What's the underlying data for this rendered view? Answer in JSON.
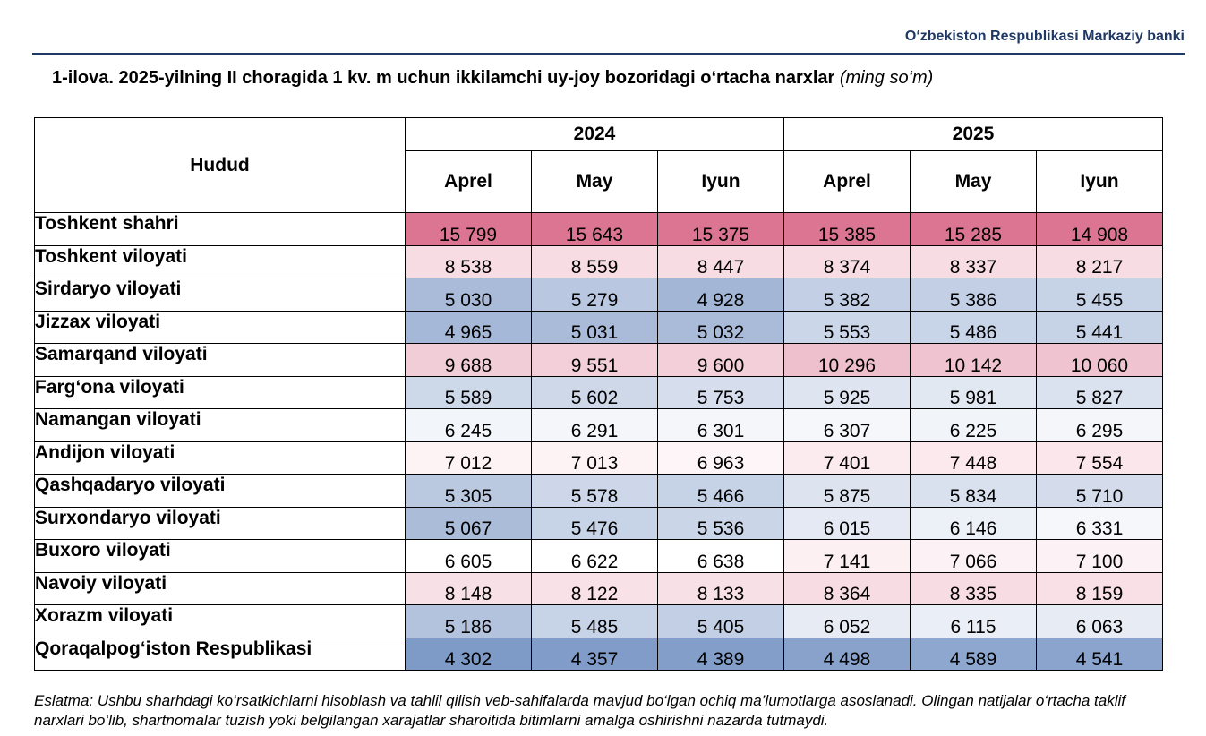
{
  "header": {
    "organization": "O‘zbekiston Respublikasi Markaziy banki"
  },
  "title": {
    "main": "1-ilova. 2025-yilning II choragida 1 kv. m uchun ikkilamchi uy-joy bozoridagi o‘rtacha narxlar",
    "unit": "(ming so‘m)"
  },
  "table": {
    "region_header": "Hudud",
    "years": [
      "2024",
      "2025"
    ],
    "months": [
      "Aprel",
      "May",
      "Iyun",
      "Aprel",
      "May",
      "Iyun"
    ],
    "rows": [
      {
        "region": "Toshkent shahri",
        "values": [
          "15 799",
          "15 643",
          "15 375",
          "15 385",
          "15 285",
          "14 908"
        ],
        "colors": [
          "#dc7591",
          "#dc7591",
          "#dc7591",
          "#dc7591",
          "#dc7591",
          "#dc7591"
        ]
      },
      {
        "region": "Toshkent viloyati",
        "values": [
          "8 538",
          "8 559",
          "8 447",
          "8 374",
          "8 337",
          "8 217"
        ],
        "colors": [
          "#f7dce3",
          "#f7dce3",
          "#f7dce3",
          "#f7dce3",
          "#f7dce3",
          "#f7dce3"
        ]
      },
      {
        "region": "Sirdaryo viloyati",
        "values": [
          "5 030",
          "5 279",
          "4 928",
          "5 382",
          "5 386",
          "5 455"
        ],
        "colors": [
          "#a9bbd9",
          "#b9c8e0",
          "#a3b6d6",
          "#c2cfe4",
          "#c2cfe4",
          "#c6d2e6"
        ]
      },
      {
        "region": "Jizzax viloyati",
        "values": [
          "4 965",
          "5 031",
          "5 032",
          "5 553",
          "5 486",
          "5 441"
        ],
        "colors": [
          "#a6b8d7",
          "#a9bbd9",
          "#a9bbd9",
          "#cbd6e8",
          "#c8d4e7",
          "#c6d2e6"
        ]
      },
      {
        "region": "Samarqand viloyati",
        "values": [
          "9 688",
          "9 551",
          "9 600",
          "10 296",
          "10 142",
          "10 060"
        ],
        "colors": [
          "#f1cdd7",
          "#f2cfd9",
          "#f2cfd9",
          "#eec0cd",
          "#efc3cf",
          "#efc4d0"
        ]
      },
      {
        "region": "Farg‘ona viloyati",
        "values": [
          "5 589",
          "5 602",
          "5 753",
          "5 925",
          "5 981",
          "5 827"
        ],
        "colors": [
          "#cdd8e9",
          "#ced8e9",
          "#d6deed",
          "#dfe5f0",
          "#e2e8f2",
          "#dae2ef"
        ]
      },
      {
        "region": "Namangan viloyati",
        "values": [
          "6 245",
          "6 291",
          "6 301",
          "6 307",
          "6 225",
          "6 295"
        ],
        "colors": [
          "#f2f5fa",
          "#f4f6fa",
          "#f4f6fa",
          "#f5f7fb",
          "#f1f4f9",
          "#f4f6fa"
        ]
      },
      {
        "region": "Andijon viloyati",
        "values": [
          "7 012",
          "7 013",
          "6 963",
          "7 401",
          "7 448",
          "7 554"
        ],
        "colors": [
          "#fdf3f5",
          "#fdf3f5",
          "#fdf5f7",
          "#fbebef",
          "#fbe9ee",
          "#fae6eb"
        ]
      },
      {
        "region": "Qashqadaryo viloyati",
        "values": [
          "5 305",
          "5 578",
          "5 466",
          "5 875",
          "5 834",
          "5 710"
        ],
        "colors": [
          "#bac8e0",
          "#cdd7e9",
          "#c6d2e6",
          "#dde3ef",
          "#dae1ee",
          "#d4dcec"
        ]
      },
      {
        "region": "Surxondaryo viloyati",
        "values": [
          "5 067",
          "5 476",
          "5 536",
          "6 015",
          "6 146",
          "6 331"
        ],
        "colors": [
          "#abbcd9",
          "#c7d3e6",
          "#cad5e8",
          "#e4e9f3",
          "#ecf0f7",
          "#f5f7fb"
        ]
      },
      {
        "region": "Buxoro viloyati",
        "values": [
          "6 605",
          "6 622",
          "6 638",
          "7 141",
          "7 066",
          "7 100"
        ],
        "colors": [
          "#ffffff",
          "#ffffff",
          "#ffffff",
          "#fcf0f3",
          "#fcf2f5",
          "#fcf1f4"
        ]
      },
      {
        "region": "Navoiy viloyati",
        "values": [
          "8 148",
          "8 122",
          "8 133",
          "8 364",
          "8 335",
          "8 159"
        ],
        "colors": [
          "#f8e0e7",
          "#f8e1e7",
          "#f8e0e7",
          "#f7dce3",
          "#f7dce3",
          "#f8e0e6"
        ]
      },
      {
        "region": "Xorazm viloyati",
        "values": [
          "5 186",
          "5 485",
          "5 405",
          "6 052",
          "6 115",
          "6 063"
        ],
        "colors": [
          "#b3c3dd",
          "#c7d3e6",
          "#c2cfe4",
          "#e6ebf4",
          "#eaeef6",
          "#e7ecf4"
        ]
      },
      {
        "region": "Qoraqalpog‘iston Respublikasi",
        "values": [
          "4 302",
          "4 357",
          "4 389",
          "4 498",
          "4 589",
          "4 541"
        ],
        "colors": [
          "#7e9ac7",
          "#819cc8",
          "#839ec9",
          "#88a2cb",
          "#8ea7ce",
          "#8ba4cd"
        ]
      }
    ]
  },
  "note": "Eslatma: Ushbu sharhdagi ko‘rsatkichlarni hisoblash va tahlil qilish veb-sahifalarda mavjud bo‘lgan ochiq ma’lumotlarga asoslanadi. Olingan natijalar o‘rtacha taklif narxlari bo‘lib, shartnomalar tuzish yoki belgilangan xarajatlar sharoitida bitimlarni amalga oshirishni nazarda tutmaydi."
}
